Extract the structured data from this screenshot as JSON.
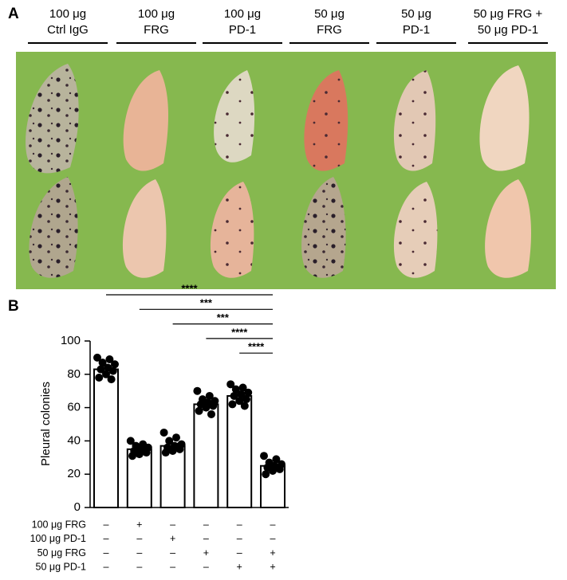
{
  "panel_a": {
    "label": "A",
    "groups": [
      [
        "100 μg",
        "Ctrl IgG"
      ],
      [
        "100 μg",
        "FRG"
      ],
      [
        "100 μg",
        "PD-1"
      ],
      [
        "50 μg",
        "FRG"
      ],
      [
        "50 μg",
        "PD-1"
      ],
      [
        "50 μg FRG +",
        "50 μg PD-1"
      ]
    ]
  },
  "chart_data": {
    "type": "bar",
    "panel_label": "B",
    "ylabel": "Pleural colonies",
    "categories": [
      null,
      null,
      null,
      null,
      null,
      null
    ],
    "values": [
      83,
      35,
      37,
      62,
      67,
      25
    ],
    "errors": [
      2,
      1.5,
      1.5,
      1.5,
      1.5,
      1
    ],
    "points": [
      [
        90,
        89,
        87,
        86,
        84,
        83,
        82,
        80,
        78,
        77
      ],
      [
        40,
        38,
        37,
        36,
        35,
        34,
        33,
        32,
        31
      ],
      [
        45,
        42,
        40,
        38,
        37,
        36,
        35,
        34,
        33
      ],
      [
        70,
        67,
        65,
        64,
        63,
        62,
        61,
        60,
        58,
        56
      ],
      [
        74,
        72,
        71,
        69,
        68,
        67,
        65,
        64,
        62,
        61
      ],
      [
        31,
        29,
        27,
        26,
        25,
        24,
        23,
        22,
        20
      ]
    ],
    "color": "#ffffff",
    "point_color": "#000000",
    "ylim": [
      0,
      100
    ],
    "yticks": [
      0,
      20,
      40,
      60,
      80,
      100
    ],
    "significance": [
      {
        "label": "****",
        "from": 0,
        "to": 5
      },
      {
        "label": "***",
        "from": 1,
        "to": 5
      },
      {
        "label": "***",
        "from": 2,
        "to": 5
      },
      {
        "label": "****",
        "from": 3,
        "to": 5
      },
      {
        "label": "****",
        "from": 4,
        "to": 5
      }
    ],
    "conditions": [
      {
        "label": "100 μg FRG",
        "marks": [
          "–",
          "+",
          "–",
          "–",
          "–",
          "–"
        ]
      },
      {
        "label": "100 μg PD-1",
        "marks": [
          "–",
          "–",
          "+",
          "–",
          "–",
          "–"
        ]
      },
      {
        "label": "50 μg FRG",
        "marks": [
          "–",
          "–",
          "–",
          "+",
          "–",
          "+"
        ]
      },
      {
        "label": "50 μg PD-1",
        "marks": [
          "–",
          "–",
          "–",
          "–",
          "+",
          "+"
        ]
      }
    ]
  }
}
